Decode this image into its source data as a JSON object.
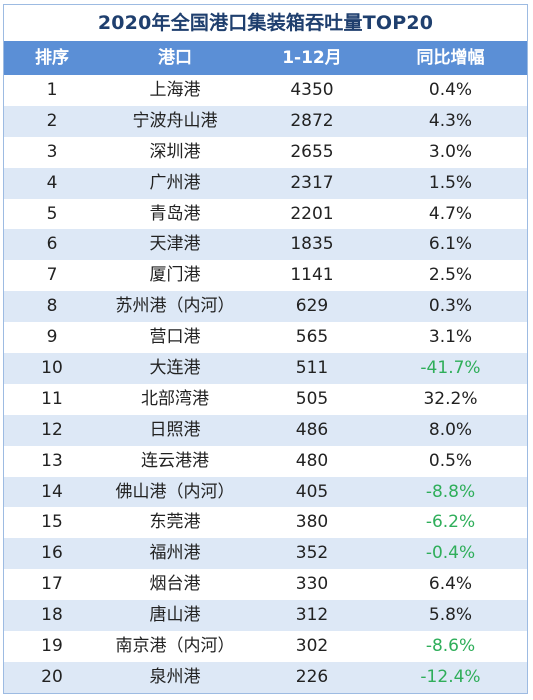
{
  "title": "2020年全国港口集装箱吞吐量TOP20",
  "header": {
    "rank": "排序",
    "port": "港口",
    "volume": "1-12月",
    "growth": "同比增幅"
  },
  "colors": {
    "header_bg": "#5b8fd6",
    "row_alt_bg": "#dde8f6",
    "negative_text": "#2fae5a",
    "title_text": "#1f3f6e"
  },
  "chart_data": {
    "type": "table",
    "title": "2020年全国港口集装箱吞吐量TOP20",
    "columns": [
      "排序",
      "港口",
      "1-12月",
      "同比增幅"
    ],
    "rows": [
      {
        "rank": "1",
        "port": "上海港",
        "volume": "4350",
        "growth": "0.4%"
      },
      {
        "rank": "2",
        "port": "宁波舟山港",
        "volume": "2872",
        "growth": "4.3%"
      },
      {
        "rank": "3",
        "port": "深圳港",
        "volume": "2655",
        "growth": "3.0%"
      },
      {
        "rank": "4",
        "port": "广州港",
        "volume": "2317",
        "growth": "1.5%"
      },
      {
        "rank": "5",
        "port": "青岛港",
        "volume": "2201",
        "growth": "4.7%"
      },
      {
        "rank": "6",
        "port": "天津港",
        "volume": "1835",
        "growth": "6.1%"
      },
      {
        "rank": "7",
        "port": "厦门港",
        "volume": "1141",
        "growth": "2.5%"
      },
      {
        "rank": "8",
        "port": "苏州港（内河）",
        "volume": "629",
        "growth": "0.3%"
      },
      {
        "rank": "9",
        "port": "营口港",
        "volume": "565",
        "growth": "3.1%"
      },
      {
        "rank": "10",
        "port": "大连港",
        "volume": "511",
        "growth": "-41.7%"
      },
      {
        "rank": "11",
        "port": "北部湾港",
        "volume": "505",
        "growth": "32.2%"
      },
      {
        "rank": "12",
        "port": "日照港",
        "volume": "486",
        "growth": "8.0%"
      },
      {
        "rank": "13",
        "port": "连云港港",
        "volume": "480",
        "growth": "0.5%"
      },
      {
        "rank": "14",
        "port": "佛山港（内河）",
        "volume": "405",
        "growth": "-8.8%"
      },
      {
        "rank": "15",
        "port": "东莞港",
        "volume": "380",
        "growth": "-6.2%"
      },
      {
        "rank": "16",
        "port": "福州港",
        "volume": "352",
        "growth": "-0.4%"
      },
      {
        "rank": "17",
        "port": "烟台港",
        "volume": "330",
        "growth": "6.4%"
      },
      {
        "rank": "18",
        "port": "唐山港",
        "volume": "312",
        "growth": "5.8%"
      },
      {
        "rank": "19",
        "port": "南京港（内河）",
        "volume": "302",
        "growth": "-8.6%"
      },
      {
        "rank": "20",
        "port": "泉州港",
        "volume": "226",
        "growth": "-12.4%"
      }
    ]
  }
}
